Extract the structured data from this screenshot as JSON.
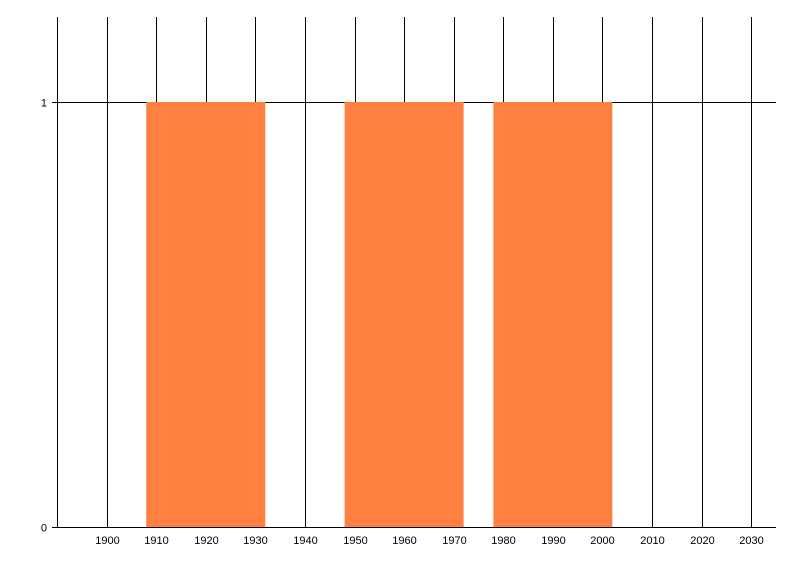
{
  "chart_data": {
    "type": "bar",
    "title": "",
    "xlabel": "",
    "ylabel": "",
    "xlim": [
      1890,
      2035
    ],
    "ylim": [
      0,
      1.2
    ],
    "x_ticks": [
      1900,
      1910,
      1920,
      1930,
      1940,
      1950,
      1960,
      1970,
      1980,
      1990,
      2000,
      2010,
      2020,
      2030
    ],
    "y_ticks": [
      0,
      1
    ],
    "grid": true,
    "legend": "none",
    "bar_color": "#ff8040",
    "bars": [
      {
        "x_start": 1908,
        "x_end": 1932,
        "value": 1
      },
      {
        "x_start": 1948,
        "x_end": 1972,
        "value": 1
      },
      {
        "x_start": 1978,
        "x_end": 2002,
        "value": 1
      }
    ]
  }
}
